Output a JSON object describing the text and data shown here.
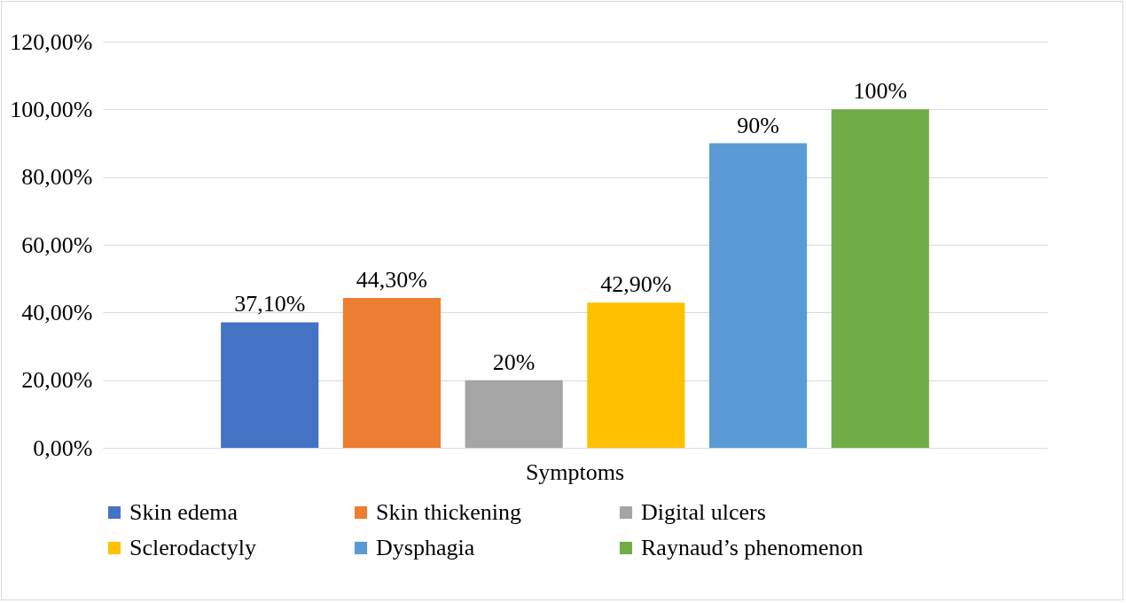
{
  "chart_data": {
    "type": "bar",
    "categories": [
      "Symptoms"
    ],
    "series": [
      {
        "name": "Skin edema",
        "color": "#4472c4",
        "values": [
          37.1
        ],
        "value_labels": [
          "37,10%"
        ]
      },
      {
        "name": "Skin thickening",
        "color": "#ed7d31",
        "values": [
          44.3
        ],
        "value_labels": [
          "44,30%"
        ]
      },
      {
        "name": "Digital ulcers",
        "color": "#a5a5a5",
        "values": [
          20
        ],
        "value_labels": [
          "20%"
        ]
      },
      {
        "name": "Sclerodactyly",
        "color": "#ffc000",
        "values": [
          42.9
        ],
        "value_labels": [
          "42,90%"
        ]
      },
      {
        "name": "Dysphagia",
        "color": "#5b9bd5",
        "values": [
          90
        ],
        "value_labels": [
          "90%"
        ]
      },
      {
        "name": "Raynaud’s phenomenon",
        "color": "#70ad47",
        "values": [
          100
        ],
        "value_labels": [
          "100%"
        ]
      }
    ],
    "ylim": [
      0,
      120
    ],
    "yticks": [
      {
        "value": 0,
        "label": "0,00%"
      },
      {
        "value": 20,
        "label": "20,00%"
      },
      {
        "value": 40,
        "label": "40,00%"
      },
      {
        "value": 60,
        "label": "60,00%"
      },
      {
        "value": 80,
        "label": "80,00%"
      },
      {
        "value": 100,
        "label": "100,00%"
      },
      {
        "value": 120,
        "label": "120,00%"
      }
    ],
    "grid": "y",
    "legend": "bottom"
  }
}
